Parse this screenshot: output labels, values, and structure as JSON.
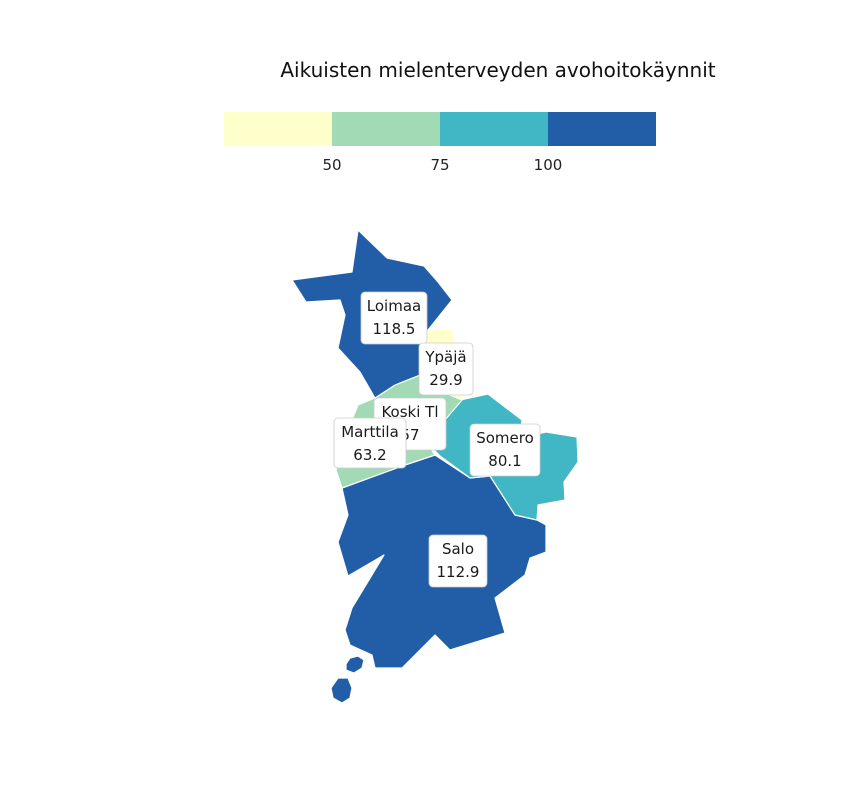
{
  "title": "Aikuisten mielenterveyden avohoitokäynnit",
  "legend": {
    "colors": [
      "#ffffcc",
      "#a1dab4",
      "#41b6c4",
      "#225ea8"
    ],
    "breaks": [
      "50",
      "75",
      "100"
    ]
  },
  "chart_data": {
    "type": "choropleth",
    "title": "Aikuisten mielenterveyden avohoitokäynnit",
    "regions": [
      {
        "name": "Loimaa",
        "value_label": "118.5",
        "value": 118.5,
        "color": "#225ea8"
      },
      {
        "name": "Ypäjä",
        "value_label": "29.9",
        "value": 29.9,
        "color": "#ffffcc"
      },
      {
        "name": "Koski Tl",
        "value_label": "57",
        "value": 57,
        "color": "#a1dab4"
      },
      {
        "name": "Marttila",
        "value_label": "63.2",
        "value": 63.2,
        "color": "#a1dab4"
      },
      {
        "name": "Somero",
        "value_label": "80.1",
        "value": 80.1,
        "color": "#41b6c4"
      },
      {
        "name": "Salo",
        "value_label": "112.9",
        "value": 112.9,
        "color": "#225ea8"
      }
    ]
  }
}
